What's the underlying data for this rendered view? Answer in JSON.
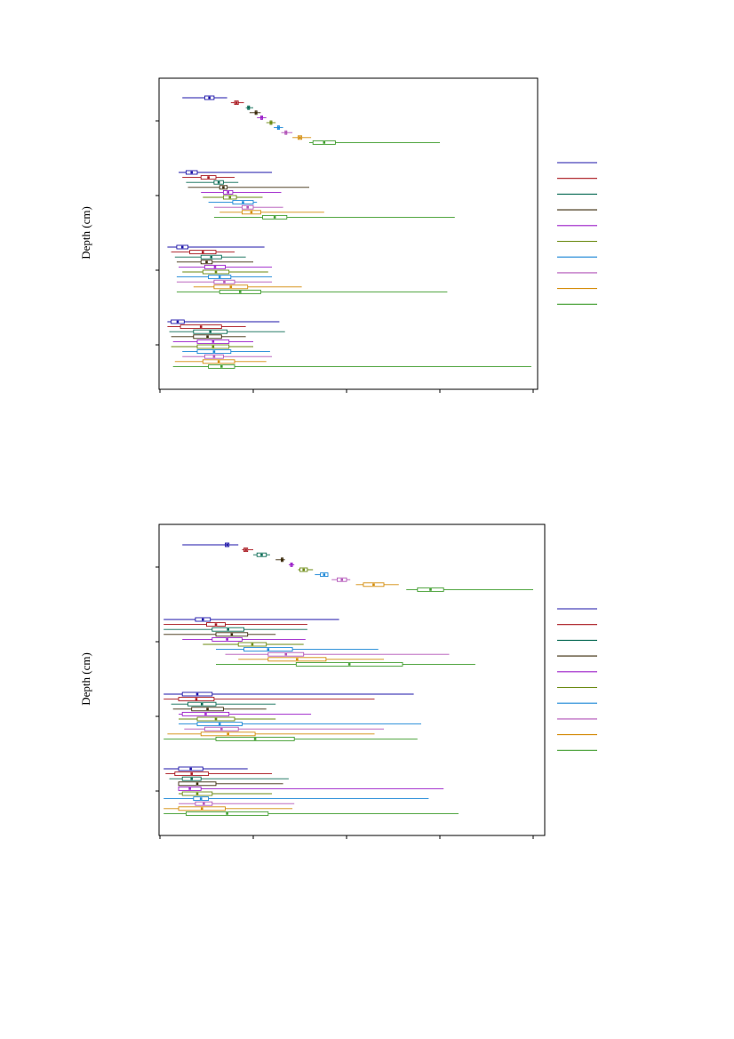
{
  "colors": [
    "#1c14a8",
    "#a8141c",
    "#0a6b55",
    "#3a2a0a",
    "#9b1fc9",
    "#6b8a12",
    "#1a86d6",
    "#b255b8",
    "#d48c0a",
    "#3e9c2c"
  ],
  "chart_data": [
    {
      "type": "boxplot",
      "ylabel": "Depth (cm)",
      "groups": [
        {
          "boxes": [
            [
              0.06,
              0.12,
              0.145,
              0.18
            ],
            [
              0.19,
              0.2,
              0.21,
              0.225
            ],
            [
              0.23,
              0.235,
              0.24,
              0.25
            ],
            [
              0.24,
              0.255,
              0.26,
              0.27
            ],
            [
              0.26,
              0.27,
              0.275,
              0.285
            ],
            [
              0.285,
              0.295,
              0.3,
              0.31
            ],
            [
              0.305,
              0.315,
              0.32,
              0.33
            ],
            [
              0.325,
              0.335,
              0.34,
              0.355
            ],
            [
              0.355,
              0.37,
              0.38,
              0.405
            ],
            [
              0.4,
              0.41,
              0.47,
              0.75
            ]
          ]
        },
        {
          "boxes": [
            [
              0.05,
              0.07,
              0.1,
              0.3
            ],
            [
              0.06,
              0.11,
              0.15,
              0.2
            ],
            [
              0.07,
              0.145,
              0.17,
              0.21
            ],
            [
              0.075,
              0.16,
              0.18,
              0.4
            ],
            [
              0.11,
              0.17,
              0.195,
              0.325
            ],
            [
              0.115,
              0.17,
              0.205,
              0.275
            ],
            [
              0.13,
              0.195,
              0.25,
              0.26
            ],
            [
              0.145,
              0.22,
              0.25,
              0.33
            ],
            [
              0.16,
              0.22,
              0.27,
              0.44
            ],
            [
              0.145,
              0.275,
              0.34,
              0.79
            ]
          ]
        },
        {
          "boxes": [
            [
              0.02,
              0.045,
              0.075,
              0.28
            ],
            [
              0.03,
              0.08,
              0.15,
              0.2
            ],
            [
              0.04,
              0.11,
              0.165,
              0.23
            ],
            [
              0.045,
              0.11,
              0.14,
              0.25
            ],
            [
              0.05,
              0.12,
              0.175,
              0.3
            ],
            [
              0.06,
              0.115,
              0.185,
              0.29
            ],
            [
              0.045,
              0.13,
              0.19,
              0.3
            ],
            [
              0.045,
              0.145,
              0.2,
              0.3
            ],
            [
              0.09,
              0.145,
              0.235,
              0.38
            ],
            [
              0.045,
              0.16,
              0.27,
              0.77
            ]
          ]
        },
        {
          "boxes": [
            [
              0.02,
              0.03,
              0.065,
              0.32
            ],
            [
              0.02,
              0.055,
              0.165,
              0.23
            ],
            [
              0.025,
              0.09,
              0.18,
              0.335
            ],
            [
              0.03,
              0.09,
              0.165,
              0.23
            ],
            [
              0.035,
              0.1,
              0.185,
              0.25
            ],
            [
              0.03,
              0.1,
              0.185,
              0.25
            ],
            [
              0.06,
              0.1,
              0.19,
              0.295
            ],
            [
              0.06,
              0.12,
              0.17,
              0.3
            ],
            [
              0.04,
              0.115,
              0.2,
              0.285
            ],
            [
              0.035,
              0.13,
              0.2,
              0.995
            ]
          ]
        }
      ]
    },
    {
      "type": "boxplot",
      "ylabel": "Depth (cm)",
      "groups": [
        {
          "boxes": [
            [
              0.06,
              0.175,
              0.185,
              0.21
            ],
            [
              0.22,
              0.225,
              0.235,
              0.25
            ],
            [
              0.25,
              0.26,
              0.285,
              0.295
            ],
            [
              0.31,
              0.325,
              0.33,
              0.335
            ],
            [
              0.345,
              0.35,
              0.355,
              0.36
            ],
            [
              0.37,
              0.375,
              0.395,
              0.41
            ],
            [
              0.415,
              0.43,
              0.45,
              0.45
            ],
            [
              0.46,
              0.475,
              0.5,
              0.51
            ],
            [
              0.525,
              0.545,
              0.6,
              0.64
            ],
            [
              0.66,
              0.69,
              0.76,
              1.0
            ]
          ]
        },
        {
          "boxes": [
            [
              0.01,
              0.095,
              0.135,
              0.48
            ],
            [
              0.01,
              0.125,
              0.175,
              0.395
            ],
            [
              0.01,
              0.14,
              0.225,
              0.395
            ],
            [
              0.01,
              0.15,
              0.235,
              0.31
            ],
            [
              0.06,
              0.14,
              0.22,
              0.39
            ],
            [
              0.115,
              0.21,
              0.285,
              0.385
            ],
            [
              0.15,
              0.225,
              0.355,
              0.585
            ],
            [
              0.175,
              0.29,
              0.385,
              0.775
            ],
            [
              0.21,
              0.29,
              0.445,
              0.6
            ],
            [
              0.15,
              0.365,
              0.65,
              0.845
            ]
          ]
        },
        {
          "boxes": [
            [
              0.01,
              0.06,
              0.14,
              0.68
            ],
            [
              0.01,
              0.05,
              0.145,
              0.575
            ],
            [
              0.03,
              0.075,
              0.15,
              0.31
            ],
            [
              0.035,
              0.085,
              0.17,
              0.285
            ],
            [
              0.05,
              0.06,
              0.185,
              0.405
            ],
            [
              0.05,
              0.1,
              0.2,
              0.31
            ],
            [
              0.05,
              0.1,
              0.22,
              0.7
            ],
            [
              0.065,
              0.12,
              0.21,
              0.6
            ],
            [
              0.02,
              0.11,
              0.255,
              0.575
            ],
            [
              0.01,
              0.15,
              0.36,
              0.69
            ]
          ]
        },
        {
          "boxes": [
            [
              0.01,
              0.05,
              0.115,
              0.235
            ],
            [
              0.015,
              0.04,
              0.13,
              0.3
            ],
            [
              0.025,
              0.06,
              0.11,
              0.345
            ],
            [
              0.05,
              0.05,
              0.15,
              0.33
            ],
            [
              0.05,
              0.05,
              0.11,
              0.76
            ],
            [
              0.05,
              0.06,
              0.14,
              0.3
            ],
            [
              0.01,
              0.09,
              0.13,
              0.72
            ],
            [
              0.05,
              0.095,
              0.14,
              0.36
            ],
            [
              0.01,
              0.05,
              0.175,
              0.355
            ],
            [
              0.01,
              0.07,
              0.29,
              0.8
            ]
          ]
        }
      ]
    }
  ]
}
